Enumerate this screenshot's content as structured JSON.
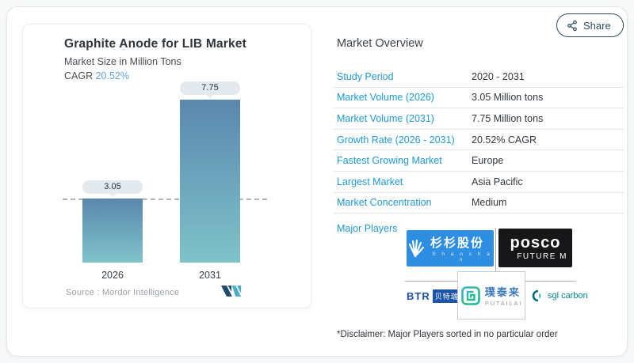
{
  "share": {
    "label": "Share"
  },
  "chart_card": {
    "title": "Graphite Anode for LIB Market",
    "subtitle": "Market Size in Million Tons",
    "cagr_label": "CAGR",
    "cagr_value": "20.52%",
    "source_line": "Source :  Mordor Intelligence",
    "logo": "mordor-intelligence-logo"
  },
  "chart_data": {
    "type": "bar",
    "categories": [
      "2026",
      "2031"
    ],
    "values": [
      3.05,
      7.75
    ],
    "data_labels": [
      "3.05",
      "7.75"
    ],
    "title": "Graphite Anode for LIB Market",
    "ylabel": "Market Size in Million Tons",
    "ylim": [
      0,
      7.75
    ],
    "grid": false,
    "baseline_dash_at": 3.05,
    "bar_gradient": [
      "#5a87ae",
      "#7fc3ca"
    ]
  },
  "overview": {
    "heading": "Market Overview",
    "rows": [
      {
        "label": "Study Period",
        "value": "2020 - 2031"
      },
      {
        "label": "Market Volume (2026)",
        "value": "3.05 Million tons"
      },
      {
        "label": "Market Volume (2031)",
        "value": "7.75 Million tons"
      },
      {
        "label": "Growth Rate (2026 - 2031)",
        "value": "20.52% CAGR"
      },
      {
        "label": "Fastest Growing Market",
        "value": "Europe"
      },
      {
        "label": "Largest Market",
        "value": "Asia Pacific"
      },
      {
        "label": "Market Concentration",
        "value": "Medium"
      }
    ],
    "major_players_label": "Major Players",
    "players": [
      "Shanshan",
      "POSCO Future M",
      "BTR",
      "PUTAILAI",
      "SGL Carbon"
    ],
    "disclaimer": "*Disclaimer: Major Players sorted in no particular order"
  },
  "logos": {
    "shanshan": {
      "cn": "杉杉股份",
      "en": "S h a n s h a n"
    },
    "posco": {
      "word": "posco",
      "sub": "FUTURE M"
    },
    "btr": {
      "en": "BTR",
      "cn": "贝特瑞"
    },
    "putailai": {
      "cn": "璞泰来",
      "en": "PUTAILAI"
    },
    "sgl": {
      "label": "sgl carbon"
    }
  },
  "colors": {
    "accent_blue": "#1f99d5",
    "cagr_blue": "#5ca6d5",
    "text_dark": "#2e353b",
    "text_mid": "#494f55",
    "bar_top": "#5a87ae",
    "bar_bottom": "#7fc3ca",
    "share_navy": "#2a4d63",
    "shanshan_blue": "#2e8fe2",
    "posco_black": "#17171a",
    "btr_blue": "#1c54a7",
    "sgl_teal": "#00878e",
    "putailai_green_1": "#38b0d8",
    "putailai_green_2": "#2fbf7f",
    "mordor_navy": "#1d4a6e",
    "mordor_teal": "#46aec7"
  }
}
